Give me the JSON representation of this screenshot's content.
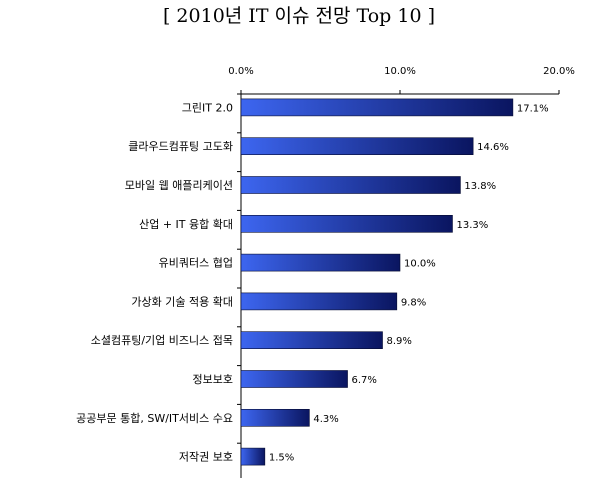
{
  "chart_data": {
    "type": "bar",
    "orientation": "horizontal",
    "title": "[ 2010년 IT 이슈 전망 Top 10 ]",
    "xlim": [
      0,
      20
    ],
    "x_ticks": [
      "0.0%",
      "10.0%",
      "20.0%"
    ],
    "x_tick_values": [
      0,
      10,
      20
    ],
    "x_axis_position": "top",
    "grid": false,
    "legend": "none",
    "categories": [
      "그린IT 2.0",
      "클라우드컴퓨팅 고도화",
      "모바일 웹 애플리케이션",
      "산업 + IT 융합 확대",
      "유비쿼터스 협업",
      "가상화 기술 적용 확대",
      "소셜컴퓨팅/기업 비즈니스 접목",
      "정보보호",
      "공공부문 통합, SW/IT서비스 수요",
      "저작권 보호"
    ],
    "values": [
      17.1,
      14.6,
      13.8,
      13.3,
      10.0,
      9.8,
      8.9,
      6.7,
      4.3,
      1.5
    ],
    "value_labels": [
      "17.1%",
      "14.6%",
      "13.8%",
      "13.3%",
      "10.0%",
      "9.8%",
      "8.9%",
      "6.7%",
      "4.3%",
      "1.5%"
    ],
    "colors": {
      "bar_start": "#3d66f0",
      "bar_end": "#0a1560",
      "axis": "#000000"
    }
  }
}
